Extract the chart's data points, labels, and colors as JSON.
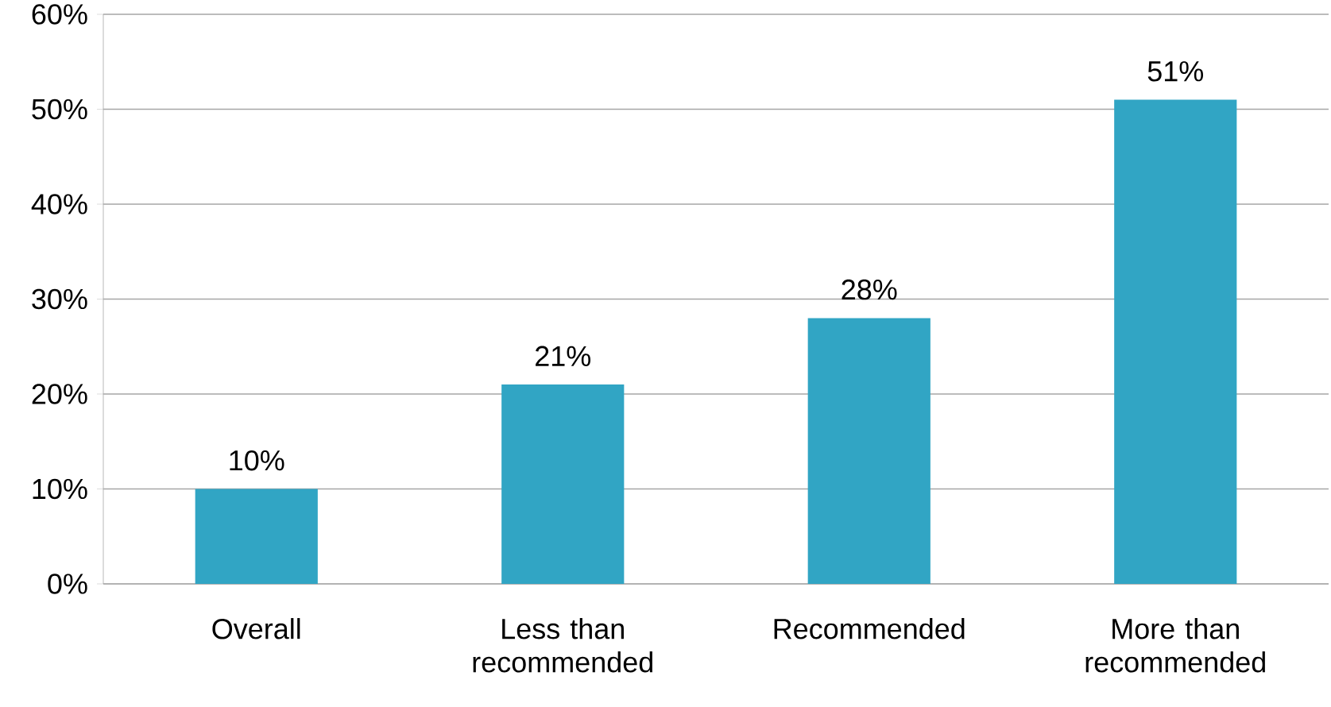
{
  "chart_data": {
    "type": "bar",
    "categories": [
      "Overall",
      "Less than recommended",
      "Recommended",
      "More than recommended"
    ],
    "values": [
      10,
      21,
      28,
      51
    ],
    "value_labels": [
      "10%",
      "21%",
      "28%",
      "51%"
    ],
    "color": "#31a5c4",
    "ylim": [
      0,
      60
    ],
    "yticks": [
      {
        "value": 0,
        "label": "0%"
      },
      {
        "value": 10,
        "label": "10%"
      },
      {
        "value": 20,
        "label": "20%"
      },
      {
        "value": 30,
        "label": "30%"
      },
      {
        "value": 40,
        "label": "40%"
      },
      {
        "value": 50,
        "label": "50%"
      },
      {
        "value": 60,
        "label": "60%"
      }
    ],
    "grid": "y"
  }
}
